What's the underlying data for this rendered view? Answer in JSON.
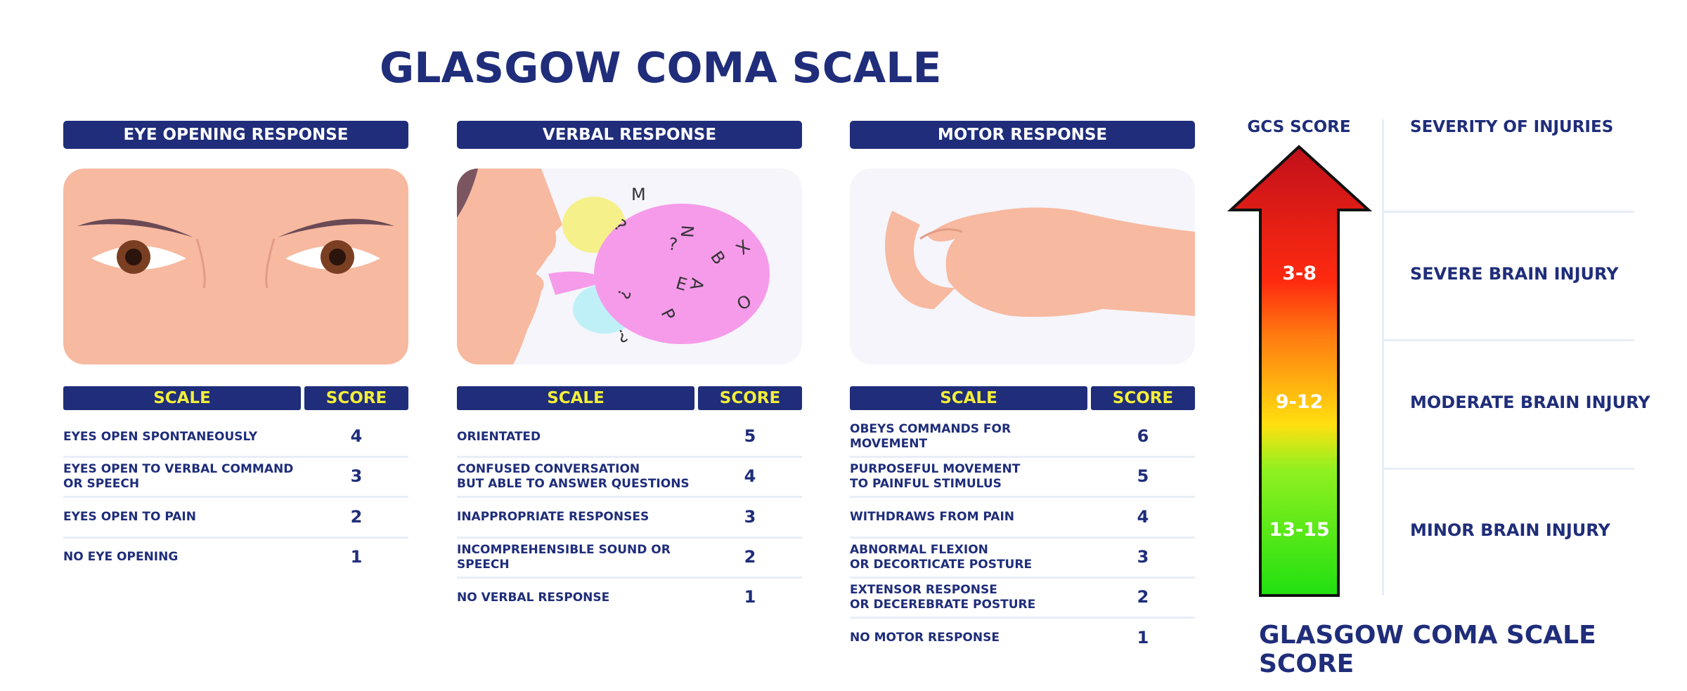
{
  "title": "GLASGOW COMA SCALE",
  "panels": [
    {
      "title": "EYE OPENING RESPONSE",
      "columns": [
        "SCALE",
        "SCORE"
      ],
      "rows": [
        [
          "EYES OPEN SPONTANEOUSLY",
          4
        ],
        [
          "EYES OPEN TO VERBAL COMMAND\nOR SPEECH",
          3
        ],
        [
          "EYES OPEN TO PAIN",
          2
        ],
        [
          "NO EYE OPENING",
          1
        ]
      ]
    },
    {
      "title": "VERBAL RESPONSE",
      "columns": [
        "SCALE",
        "SCORE"
      ],
      "rows": [
        [
          "ORIENTATED",
          5
        ],
        [
          "CONFUSED CONVERSATION\nBUT ABLE TO ANSWER QUESTIONS",
          4
        ],
        [
          "INAPPROPRIATE RESPONSES",
          3
        ],
        [
          "INCOMPREHENSIBLE SOUND OR\nSPEECH",
          2
        ],
        [
          "NO VERBAL RESPONSE",
          1
        ]
      ]
    },
    {
      "title": "MOTOR RESPONSE",
      "columns": [
        "SCALE",
        "SCORE"
      ],
      "rows": [
        [
          "OBEYS COMMANDS FOR MOVEMENT",
          6
        ],
        [
          "PURPOSEFUL MOVEMENT\nTO PAINFUL STIMULUS",
          5
        ],
        [
          "WITHDRAWS FROM PAIN",
          4
        ],
        [
          "ABNORMAL FLEXION\nOR DECORTICATE POSTURE",
          3
        ],
        [
          "EXTENSOR RESPONSE\nOR DECEREBRATE POSTURE",
          2
        ],
        [
          "NO MOTOR RESPONSE",
          1
        ]
      ]
    }
  ],
  "speech_letters": [
    "M",
    "?",
    "N",
    "X",
    "?",
    "B",
    "A",
    "O",
    "E",
    "P",
    "?",
    "?"
  ],
  "gcs": {
    "score_header": "GCS SCORE",
    "severity_header": "SEVERITY OF INJURIES",
    "levels": [
      {
        "range": "3-8",
        "severity": "SEVERE BRAIN INJURY"
      },
      {
        "range": "9-12",
        "severity": "MODERATE BRAIN INJURY"
      },
      {
        "range": "13-15",
        "severity": "MINOR BRAIN INJURY"
      }
    ],
    "footer": "GLASGOW COMA SCALE SCORE"
  }
}
